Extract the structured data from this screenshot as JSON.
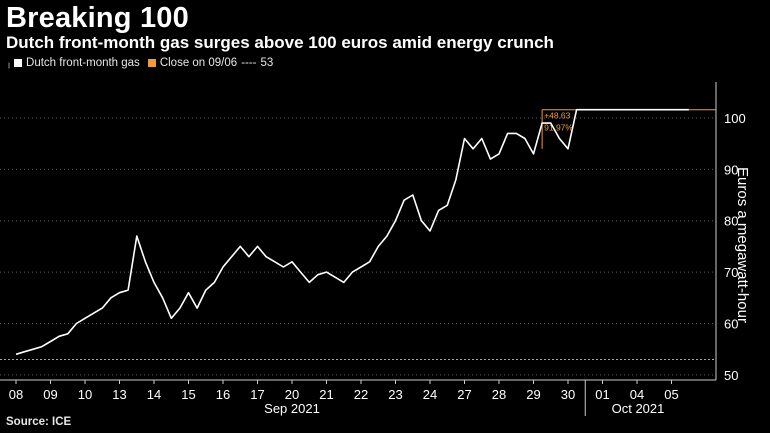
{
  "title": "Breaking 100",
  "subtitle": "Dutch front-month gas surges above 100 euros amid energy crunch",
  "source": "Source: ICE",
  "legend": {
    "series_label": "Dutch front-month gas",
    "close_label": "Close on 09/06",
    "close_dashes": "----",
    "close_value": "53"
  },
  "colors": {
    "background": "#000000",
    "series": "#ffffff",
    "close_line": "#f29a3a",
    "grid": "#5a5a5a"
  },
  "chart_data": {
    "type": "line",
    "title": "Breaking 100",
    "ylabel": "Euros a megawatt-hour",
    "ylim": [
      49,
      107
    ],
    "yticks": [
      50,
      60,
      70,
      80,
      90,
      100
    ],
    "grid": true,
    "grid_style": "dotted horizontal",
    "x_tick_labels": [
      "08",
      "09",
      "10",
      "13",
      "14",
      "15",
      "16",
      "17",
      "20",
      "21",
      "22",
      "23",
      "24",
      "27",
      "28",
      "29",
      "30",
      "01",
      "04",
      "05"
    ],
    "month_labels": [
      "Sep 2021",
      "Oct 2021"
    ],
    "reference_line": {
      "label": "Close on 09/06",
      "value": 53
    },
    "annotations": [
      "+48.63",
      "91.97%"
    ],
    "series": [
      {
        "name": "Dutch front-month gas",
        "x": [
          0,
          0.25,
          0.5,
          0.75,
          1,
          1.25,
          1.5,
          1.75,
          2,
          2.25,
          2.5,
          2.75,
          3,
          3.25,
          3.5,
          3.75,
          4,
          4.25,
          4.5,
          4.75,
          5,
          5.25,
          5.5,
          5.75,
          6,
          6.25,
          6.5,
          6.75,
          7,
          7.25,
          7.5,
          7.75,
          8,
          8.25,
          8.5,
          8.75,
          9,
          9.25,
          9.5,
          9.75,
          10,
          10.25,
          10.5,
          10.75,
          11,
          11.25,
          11.5,
          11.75,
          12,
          12.25,
          12.5,
          12.75,
          13,
          13.25,
          13.5,
          13.75,
          14,
          14.25,
          14.5,
          14.75,
          15,
          15.25,
          15.5,
          15.75,
          16,
          16.25,
          16.5,
          16.75,
          17,
          17.25,
          17.5,
          17.75,
          18,
          18.25,
          18.5,
          18.75,
          19,
          19.25,
          19.5
        ],
        "values": [
          54,
          54.5,
          55,
          55.5,
          56.5,
          57.5,
          58,
          60,
          61,
          62,
          63,
          65,
          66,
          66.5,
          77,
          72,
          68,
          65,
          61,
          63,
          66,
          63,
          66.5,
          68,
          71,
          73,
          75,
          73,
          75,
          73,
          72,
          71,
          72,
          70,
          68,
          69.5,
          70,
          69,
          68,
          70,
          71,
          72,
          75,
          77,
          80,
          84,
          85,
          80,
          78,
          82,
          83,
          88,
          96,
          94,
          96,
          92,
          93,
          97,
          97,
          96,
          93,
          99,
          99,
          96,
          94,
          101.6,
          101.6,
          101.6,
          101.6,
          101.6,
          101.6,
          101.6,
          101.6,
          101.6,
          101.6,
          101.6,
          101.6,
          101.6,
          101.6
        ]
      }
    ]
  }
}
